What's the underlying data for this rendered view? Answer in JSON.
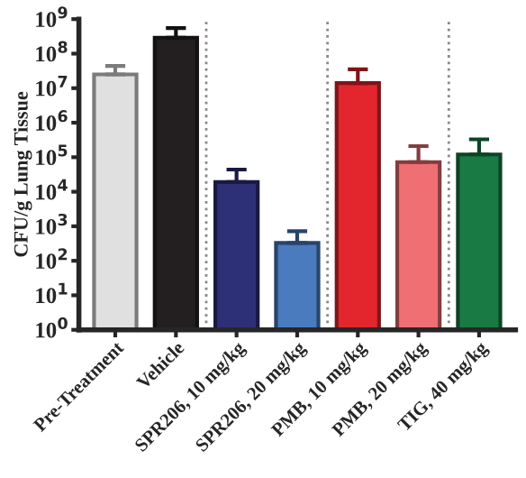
{
  "chart_data": {
    "type": "bar",
    "ylabel": "CFU/g Lung Tissue",
    "categories": [
      "Pre-Treatment",
      "Vehicle",
      "SPR206, 10 mg/kg",
      "SPR206, 20 mg/kg",
      "PMB, 10 mg/kg",
      "PMB, 20 mg/kg",
      "TIG, 40 mg/kg"
    ],
    "values": [
      25000000,
      290000000,
      19000,
      330,
      14000000,
      72000,
      120000
    ],
    "errors": [
      [
        25000000,
        44000000
      ],
      [
        290000000,
        550000000
      ],
      [
        19000,
        44000
      ],
      [
        330,
        720
      ],
      [
        14000000,
        35000000
      ],
      [
        72000,
        210000
      ],
      [
        120000,
        330000
      ]
    ],
    "colors": [
      "#e0e0e0",
      "#231f20",
      "#2e3077",
      "#4a7bbf",
      "#e3262d",
      "#ef6f73",
      "#1a7a43"
    ],
    "log": "y",
    "ylim": [
      1,
      1000000000
    ],
    "yticks": [
      {
        "value": 1,
        "label": "10$^{0}$"
      },
      {
        "value": 10,
        "label": "10$^{1}$"
      },
      {
        "value": 100,
        "label": "10$^{2}$"
      },
      {
        "value": 1000,
        "label": "10$^{3}$"
      },
      {
        "value": 10000,
        "label": "10$^{4}$"
      },
      {
        "value": 100000,
        "label": "10$^{5}$"
      },
      {
        "value": 1000000,
        "label": "10$^{6}$"
      },
      {
        "value": 10000000,
        "label": "10$^{7}$"
      },
      {
        "value": 100000000,
        "label": "10$^{8}$"
      },
      {
        "value": 1000000000,
        "label": "10$^{9}$"
      }
    ],
    "grid": false,
    "legend": false
  }
}
